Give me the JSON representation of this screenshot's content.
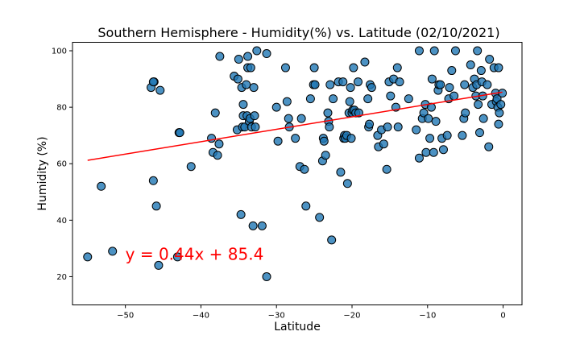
{
  "chart_data": {
    "type": "scatter",
    "title": "Southern Hemisphere - Humidity(%) vs. Latitude (02/10/2021)",
    "xlabel": "Latitude",
    "ylabel": "Humidity (%)",
    "xlim": [
      -57,
      2.5
    ],
    "ylim": [
      10,
      103
    ],
    "xticks": [
      -50,
      -40,
      -30,
      -20,
      -10,
      0
    ],
    "yticks": [
      20,
      40,
      60,
      80,
      100
    ],
    "grid": false,
    "point_color": "#1f77b4",
    "regression": {
      "slope": 0.44,
      "intercept": 85.4,
      "x_range": [
        -55,
        -0.1
      ],
      "color": "#ff0000",
      "equation_text": "y = 0.44x + 85.4",
      "equation_position_data": [
        -50,
        26
      ]
    },
    "points": [
      [
        -55,
        27
      ],
      [
        -53.2,
        52
      ],
      [
        -51.7,
        29
      ],
      [
        -46.6,
        87
      ],
      [
        -46.2,
        89
      ],
      [
        -46.3,
        89
      ],
      [
        -46.3,
        54
      ],
      [
        -45.9,
        45
      ],
      [
        -45.6,
        24
      ],
      [
        -45.4,
        86
      ],
      [
        -42.9,
        71
      ],
      [
        -42.8,
        71
      ],
      [
        -43.1,
        27
      ],
      [
        -41.3,
        59
      ],
      [
        -38.6,
        69
      ],
      [
        -38.4,
        64
      ],
      [
        -38.1,
        78
      ],
      [
        -37.8,
        63
      ],
      [
        -37.6,
        67
      ],
      [
        -37.5,
        98
      ],
      [
        -35.6,
        91
      ],
      [
        -35.2,
        72
      ],
      [
        -35,
        97
      ],
      [
        -35.1,
        90
      ],
      [
        -34.7,
        42
      ],
      [
        -34.6,
        87
      ],
      [
        -34.5,
        73
      ],
      [
        -34.4,
        77
      ],
      [
        -34.4,
        81
      ],
      [
        -34.2,
        73
      ],
      [
        -34,
        88
      ],
      [
        -33.9,
        77
      ],
      [
        -33.8,
        94
      ],
      [
        -33.8,
        98
      ],
      [
        -33.6,
        75
      ],
      [
        -33.5,
        76
      ],
      [
        -33.4,
        94
      ],
      [
        -33.3,
        73
      ],
      [
        -33.1,
        38
      ],
      [
        -33,
        87
      ],
      [
        -32.9,
        77
      ],
      [
        -32.6,
        100
      ],
      [
        -32.8,
        73
      ],
      [
        -31.9,
        38
      ],
      [
        -31.3,
        99
      ],
      [
        -31.3,
        20
      ],
      [
        -30,
        80
      ],
      [
        -29.8,
        68
      ],
      [
        -28.8,
        94
      ],
      [
        -28.6,
        82
      ],
      [
        -28.4,
        76
      ],
      [
        -28.3,
        73
      ],
      [
        -27.5,
        69
      ],
      [
        -26.9,
        59
      ],
      [
        -26.7,
        76
      ],
      [
        -26.3,
        58
      ],
      [
        -26.1,
        45
      ],
      [
        -25.5,
        83
      ],
      [
        -25.1,
        88
      ],
      [
        -25,
        94
      ],
      [
        -24.9,
        88
      ],
      [
        -24.3,
        41
      ],
      [
        -23.9,
        61
      ],
      [
        -23.8,
        69
      ],
      [
        -23.7,
        68
      ],
      [
        -23.5,
        63
      ],
      [
        -23.2,
        78
      ],
      [
        -23.1,
        75
      ],
      [
        -23,
        73
      ],
      [
        -22.9,
        88
      ],
      [
        -22.7,
        33
      ],
      [
        -22.5,
        83
      ],
      [
        -21.8,
        89
      ],
      [
        -21.5,
        57
      ],
      [
        -21.2,
        89
      ],
      [
        -21.1,
        69
      ],
      [
        -21,
        70
      ],
      [
        -20.9,
        69
      ],
      [
        -20.7,
        70
      ],
      [
        -20.6,
        53
      ],
      [
        -20.4,
        78
      ],
      [
        -20.3,
        82
      ],
      [
        -20.2,
        87
      ],
      [
        -20.1,
        69
      ],
      [
        -20,
        78
      ],
      [
        -19.9,
        79
      ],
      [
        -19.8,
        94
      ],
      [
        -19.7,
        79
      ],
      [
        -19.5,
        78
      ],
      [
        -19.2,
        89
      ],
      [
        -19.1,
        78
      ],
      [
        -18.3,
        96
      ],
      [
        -17.9,
        83
      ],
      [
        -17.8,
        73
      ],
      [
        -17.7,
        74
      ],
      [
        -17.6,
        88
      ],
      [
        -17.4,
        87
      ],
      [
        -16.6,
        70
      ],
      [
        -16.5,
        66
      ],
      [
        -16.1,
        72
      ],
      [
        -15.8,
        67
      ],
      [
        -15.4,
        58
      ],
      [
        -15.3,
        73
      ],
      [
        -15.1,
        89
      ],
      [
        -14.9,
        84
      ],
      [
        -14.5,
        90
      ],
      [
        -14.2,
        80
      ],
      [
        -14,
        94
      ],
      [
        -13.9,
        73
      ],
      [
        -13.7,
        89
      ],
      [
        -12.5,
        83
      ],
      [
        -11.5,
        72
      ],
      [
        -11.1,
        62
      ],
      [
        -11.1,
        100
      ],
      [
        -10.7,
        76
      ],
      [
        -10.5,
        78
      ],
      [
        -10.3,
        81
      ],
      [
        -10.2,
        64
      ],
      [
        -9.9,
        76
      ],
      [
        -9.7,
        69
      ],
      [
        -9.5,
        80
      ],
      [
        -9.4,
        90
      ],
      [
        -9.2,
        64
      ],
      [
        -9.1,
        100
      ],
      [
        -8.9,
        75
      ],
      [
        -8.6,
        86
      ],
      [
        -8.5,
        88
      ],
      [
        -8.3,
        88
      ],
      [
        -8.1,
        69
      ],
      [
        -7.9,
        65
      ],
      [
        -7.4,
        70
      ],
      [
        -7.2,
        83
      ],
      [
        -7.1,
        87
      ],
      [
        -6.8,
        93
      ],
      [
        -6.5,
        84
      ],
      [
        -6.3,
        100
      ],
      [
        -5.4,
        70
      ],
      [
        -5.2,
        76
      ],
      [
        -5.1,
        88
      ],
      [
        -5.0,
        78
      ],
      [
        -4.3,
        95
      ],
      [
        -4.0,
        87
      ],
      [
        -3.8,
        90
      ],
      [
        -3.6,
        84
      ],
      [
        -3.5,
        88
      ],
      [
        -3.4,
        100
      ],
      [
        -3.3,
        81
      ],
      [
        -3.1,
        71
      ],
      [
        -2.9,
        93
      ],
      [
        -2.8,
        89
      ],
      [
        -2.7,
        84
      ],
      [
        -2.6,
        76
      ],
      [
        -2.1,
        88
      ],
      [
        -1.9,
        66
      ],
      [
        -1.8,
        97
      ],
      [
        -1.5,
        81
      ],
      [
        -1.2,
        94
      ],
      [
        -1.0,
        85
      ],
      [
        -0.9,
        82
      ],
      [
        -0.8,
        83
      ],
      [
        -0.7,
        80
      ],
      [
        -0.6,
        94
      ],
      [
        -0.6,
        74
      ],
      [
        -0.5,
        78
      ],
      [
        -0.3,
        81
      ],
      [
        -0.1,
        85
      ]
    ]
  }
}
